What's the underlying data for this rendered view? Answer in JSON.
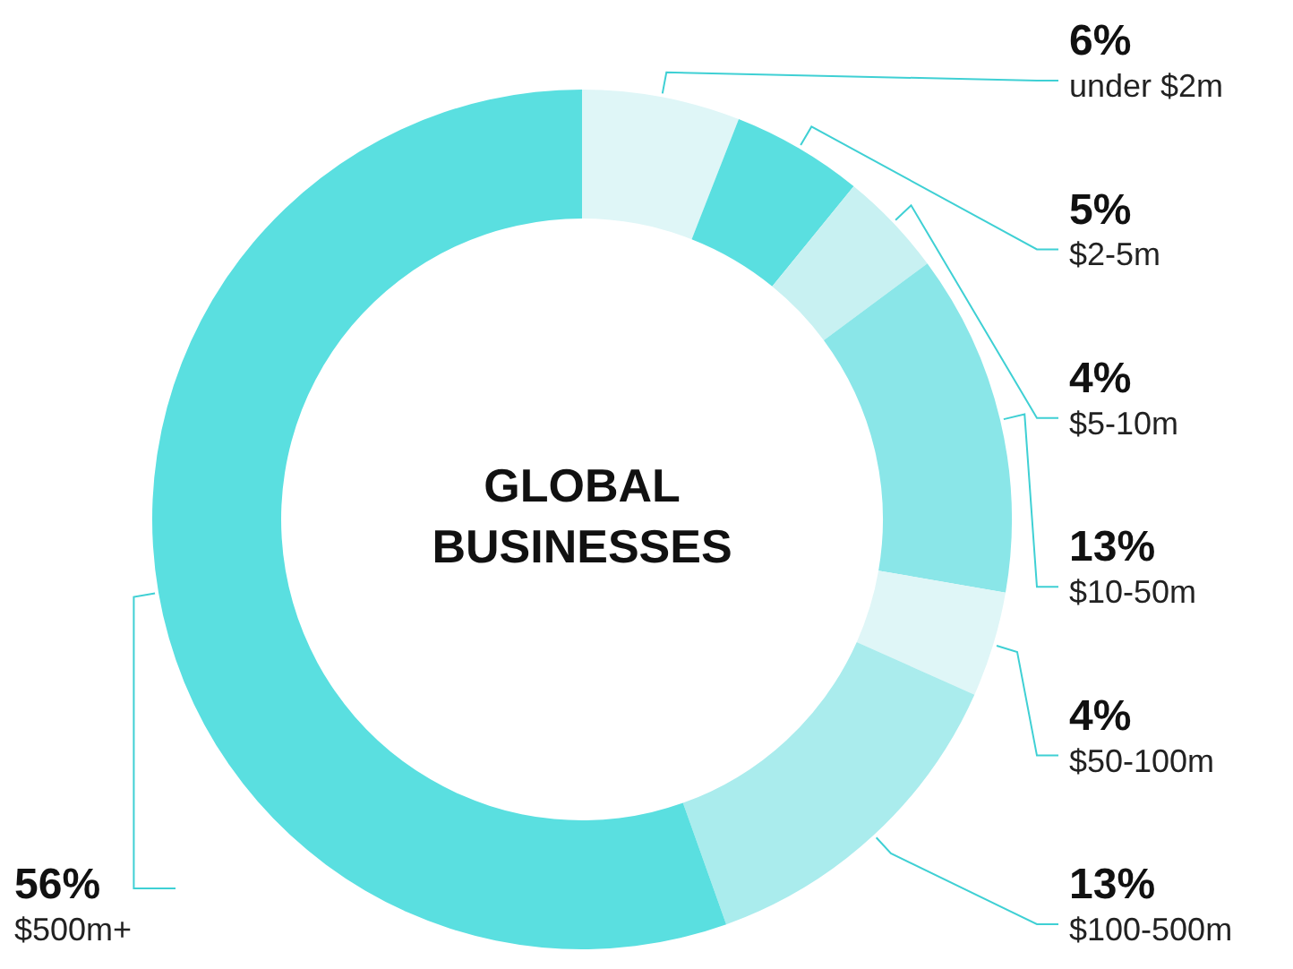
{
  "chart_data": {
    "type": "donut",
    "title": "GLOBAL BUSINESSES",
    "categories": [
      "under $2m",
      "$2-5m",
      "$5-10m",
      "$10-50m",
      "$50-100m",
      "$100-500m",
      "$500m+"
    ],
    "values": [
      6,
      5,
      4,
      13,
      4,
      13,
      56
    ],
    "colors": [
      "#dff6f7",
      "#5adfe0",
      "#c8f1f2",
      "#8ae6e8",
      "#dff6f7",
      "#aaeced",
      "#5adfe0"
    ],
    "value_labels": [
      "6%",
      "5%",
      "4%",
      "13%",
      "4%",
      "13%",
      "56%"
    ],
    "legend": false
  }
}
